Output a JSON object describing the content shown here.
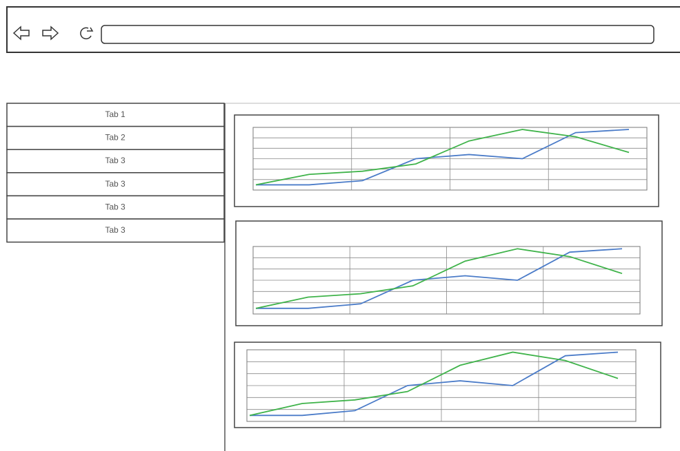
{
  "tabs": [
    "Tab 1",
    "Tab 2",
    "Tab 3",
    "Tab 3",
    "Tab 3",
    "Tab 3"
  ],
  "charts": [
    {
      "type": "line",
      "grid_rows": 6,
      "grid_columns": 4,
      "ylim": [
        0,
        6
      ],
      "categories": [
        null,
        null,
        null,
        null,
        null,
        null,
        null,
        null
      ],
      "series": [
        {
          "color": "#4a7bc8",
          "values": [
            0.5,
            0.5,
            0.9,
            3.0,
            3.4,
            3.0,
            5.5,
            5.8
          ]
        },
        {
          "color": "#3fb34a",
          "values": [
            0.5,
            1.5,
            1.8,
            2.5,
            4.7,
            5.8,
            5.1,
            3.6
          ]
        }
      ]
    },
    {
      "type": "line",
      "grid_rows": 6,
      "grid_columns": 4,
      "ylim": [
        0,
        6
      ],
      "categories": [
        null,
        null,
        null,
        null,
        null,
        null,
        null,
        null
      ],
      "series": [
        {
          "color": "#4a7bc8",
          "values": [
            0.5,
            0.5,
            0.9,
            3.0,
            3.4,
            3.0,
            5.5,
            5.8
          ]
        },
        {
          "color": "#3fb34a",
          "values": [
            0.5,
            1.5,
            1.8,
            2.5,
            4.7,
            5.8,
            5.1,
            3.6
          ]
        }
      ]
    },
    {
      "type": "line",
      "grid_rows": 6,
      "grid_columns": 4,
      "ylim": [
        0,
        6
      ],
      "categories": [
        null,
        null,
        null,
        null,
        null,
        null,
        null,
        null
      ],
      "series": [
        {
          "color": "#4a7bc8",
          "values": [
            0.5,
            0.5,
            0.9,
            3.0,
            3.4,
            3.0,
            5.5,
            5.8
          ]
        },
        {
          "color": "#3fb34a",
          "values": [
            0.5,
            1.5,
            1.8,
            2.5,
            4.7,
            5.8,
            5.1,
            3.6
          ]
        }
      ]
    }
  ]
}
